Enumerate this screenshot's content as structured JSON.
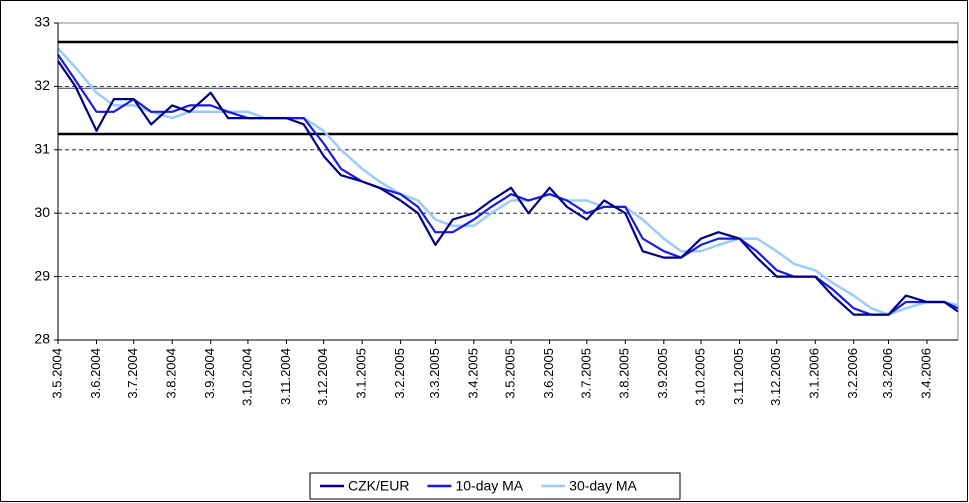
{
  "chart_data": {
    "type": "line",
    "x": [
      "3.5.2004",
      "17.5.2004",
      "3.6.2004",
      "17.6.2004",
      "3.7.2004",
      "17.7.2004",
      "3.8.2004",
      "17.8.2004",
      "3.9.2004",
      "17.9.2004",
      "3.10.2004",
      "17.10.2004",
      "3.11.2004",
      "17.11.2004",
      "3.12.2004",
      "17.12.2004",
      "3.1.2005",
      "17.1.2005",
      "3.2.2005",
      "17.2.2005",
      "3.3.2005",
      "17.3.2005",
      "3.4.2005",
      "17.4.2005",
      "3.5.2005",
      "17.5.2005",
      "3.6.2005",
      "17.6.2005",
      "3.7.2005",
      "17.7.2005",
      "3.8.2005",
      "17.8.2005",
      "3.9.2005",
      "17.9.2005",
      "3.10.2005",
      "17.10.2005",
      "3.11.2005",
      "17.11.2005",
      "3.12.2005",
      "17.12.2005",
      "3.1.2006",
      "17.1.2006",
      "3.2.2006",
      "17.2.2006",
      "3.3.2006",
      "17.3.2006",
      "3.4.2006",
      "17.4.2006",
      "28.4.2006"
    ],
    "series": [
      {
        "name": "CZK/EUR",
        "color": "#000080",
        "width": 2.2,
        "values": [
          32.4,
          32.0,
          31.3,
          31.8,
          31.8,
          31.4,
          31.7,
          31.6,
          31.9,
          31.5,
          31.5,
          31.5,
          31.5,
          31.4,
          30.9,
          30.6,
          30.5,
          30.4,
          30.2,
          30.0,
          29.5,
          29.9,
          30.0,
          30.2,
          30.4,
          30.0,
          30.4,
          30.1,
          29.9,
          30.2,
          30.0,
          29.4,
          29.3,
          29.3,
          29.6,
          29.7,
          29.6,
          29.3,
          29.0,
          29.0,
          29.0,
          28.7,
          28.4,
          28.4,
          28.4,
          28.7,
          28.6,
          28.6,
          28.45
        ]
      },
      {
        "name": "10-day MA",
        "color": "#1a1ae6",
        "width": 2.2,
        "values": [
          32.5,
          32.1,
          31.6,
          31.6,
          31.8,
          31.6,
          31.6,
          31.7,
          31.7,
          31.6,
          31.5,
          31.5,
          31.5,
          31.5,
          31.1,
          30.7,
          30.5,
          30.4,
          30.3,
          30.1,
          29.7,
          29.7,
          29.9,
          30.1,
          30.3,
          30.2,
          30.3,
          30.2,
          30.0,
          30.1,
          30.1,
          29.6,
          29.4,
          29.3,
          29.5,
          29.6,
          29.6,
          29.4,
          29.1,
          29.0,
          29.0,
          28.8,
          28.5,
          28.4,
          28.4,
          28.6,
          28.6,
          28.6,
          28.5
        ]
      },
      {
        "name": "30-day MA",
        "color": "#99ccff",
        "width": 2.5,
        "values": [
          32.6,
          32.3,
          31.9,
          31.7,
          31.7,
          31.6,
          31.5,
          31.6,
          31.6,
          31.6,
          31.6,
          31.5,
          31.5,
          31.5,
          31.3,
          31.0,
          30.7,
          30.5,
          30.3,
          30.2,
          29.9,
          29.8,
          29.8,
          30.0,
          30.2,
          30.2,
          30.3,
          30.2,
          30.2,
          30.1,
          30.1,
          29.9,
          29.6,
          29.4,
          29.4,
          29.5,
          29.6,
          29.6,
          29.4,
          29.2,
          29.1,
          28.9,
          28.7,
          28.5,
          28.4,
          28.5,
          28.6,
          28.6,
          28.55
        ]
      }
    ],
    "xticks": [
      "3.5.2004",
      "3.6.2004",
      "3.7.2004",
      "3.8.2004",
      "3.9.2004",
      "3.10.2004",
      "3.11.2004",
      "3.12.2004",
      "3.1.2005",
      "3.2.2005",
      "3.3.2005",
      "3.4.2005",
      "3.5.2005",
      "3.6.2005",
      "3.7.2005",
      "3.8.2005",
      "3.9.2005",
      "3.10.2005",
      "3.11.2005",
      "3.12.2005",
      "3.1.2006",
      "3.2.2006",
      "3.3.2006",
      "3.4.2006"
    ],
    "ylim": [
      28,
      33
    ],
    "yticks": [
      28,
      29,
      30,
      31,
      32,
      33
    ],
    "grid": true,
    "reference_lines": [
      {
        "value": 32.7,
        "color": "#000000",
        "width": 2.5
      },
      {
        "value": 31.97,
        "color": "#333366",
        "width": 1
      },
      {
        "value": 31.25,
        "color": "#000000",
        "width": 2.5
      }
    ],
    "legend": "bottom"
  }
}
